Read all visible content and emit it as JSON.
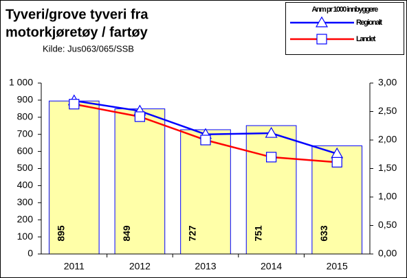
{
  "chart_data": {
    "type": "bar-line",
    "title": [
      "Tyveri/grove tyveri fra",
      "motorkjøretøy / fartøy"
    ],
    "subtitle": "Kilde: Jus063/065/SSB",
    "legend_title": "Anm pr 1000 innbyggere",
    "categories": [
      "2011",
      "2012",
      "2013",
      "2014",
      "2015"
    ],
    "values": [
      895,
      849,
      727,
      751,
      633
    ],
    "color": "#ffffa8",
    "series": [
      {
        "name": "Regionalt",
        "color": "#0000ff",
        "marker": "triangle",
        "axis": "y2",
        "values": [
          2.69,
          2.51,
          2.1,
          2.12,
          1.76
        ]
      },
      {
        "name": "Landet",
        "color": "#ff0000",
        "marker": "square",
        "axis": "y2",
        "values": [
          2.63,
          2.41,
          2.0,
          1.7,
          1.61
        ]
      }
    ],
    "ylim": [
      0,
      1000
    ],
    "yticks": [
      0,
      100,
      200,
      300,
      400,
      500,
      600,
      700,
      800,
      900,
      {
        "value": 1000,
        "label": "1 000"
      }
    ],
    "y2lim": [
      0,
      3
    ],
    "y2ticks": [
      {
        "value": 0,
        "label": "0,00"
      },
      {
        "value": 0.5,
        "label": "0,50"
      },
      {
        "value": 1,
        "label": "1,00"
      },
      {
        "value": 1.5,
        "label": "1,50"
      },
      {
        "value": 2,
        "label": "2,00"
      },
      {
        "value": 2.5,
        "label": "2,50"
      },
      {
        "value": 3,
        "label": "3,00"
      }
    ]
  }
}
